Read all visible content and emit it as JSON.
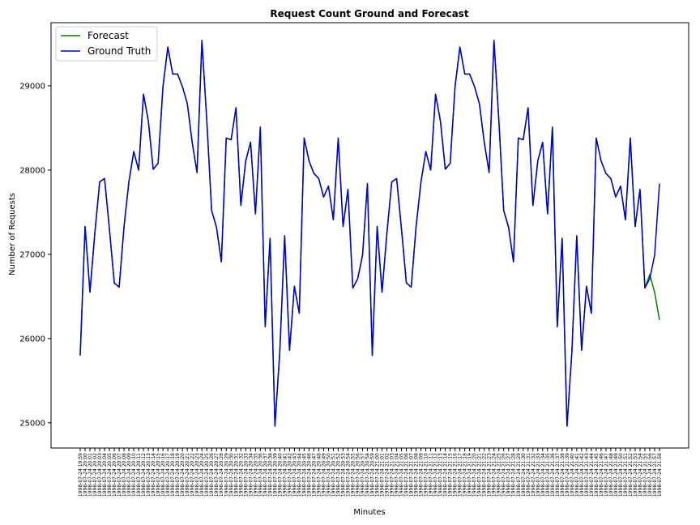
{
  "chart_data": {
    "type": "line",
    "title": "Request Count Ground and Forecast",
    "xlabel": "Minutes",
    "ylabel": "Number of Requests",
    "ylim": [
      24700,
      29750
    ],
    "yticks": [
      25000,
      26000,
      27000,
      28000,
      29000
    ],
    "x": [
      "1998-07-24 19:59",
      "1998-07-24 20:00",
      "1998-07-24 20:01",
      "1998-07-24 20:02",
      "1998-07-24 20:03",
      "1998-07-24 20:04",
      "1998-07-24 20:05",
      "1998-07-24 20:06",
      "1998-07-24 20:07",
      "1998-07-24 20:08",
      "1998-07-24 20:09",
      "1998-07-24 20:10",
      "1998-07-24 20:11",
      "1998-07-24 20:12",
      "1998-07-24 20:13",
      "1998-07-24 20:14",
      "1998-07-24 20:15",
      "1998-07-24 20:16",
      "1998-07-24 20:17",
      "1998-07-24 20:18",
      "1998-07-24 20:19",
      "1998-07-24 20:20",
      "1998-07-24 20:21",
      "1998-07-24 20:22",
      "1998-07-24 20:23",
      "1998-07-24 20:24",
      "1998-07-24 20:25",
      "1998-07-24 20:26",
      "1998-07-24 20:27",
      "1998-07-24 20:28",
      "1998-07-24 20:29",
      "1998-07-24 20:30",
      "1998-07-24 20:31",
      "1998-07-24 20:32",
      "1998-07-24 20:33",
      "1998-07-24 20:34",
      "1998-07-24 20:35",
      "1998-07-24 20:36",
      "1998-07-24 20:37",
      "1998-07-24 20:38",
      "1998-07-24 20:39",
      "1998-07-24 20:40",
      "1998-07-24 20:41",
      "1998-07-24 20:42",
      "1998-07-24 20:43",
      "1998-07-24 20:44",
      "1998-07-24 20:45",
      "1998-07-24 20:46",
      "1998-07-24 20:47",
      "1998-07-24 20:48",
      "1998-07-24 20:49",
      "1998-07-24 20:50",
      "1998-07-24 20:51",
      "1998-07-24 20:52",
      "1998-07-24 20:53",
      "1998-07-24 20:54",
      "1998-07-24 20:55",
      "1998-07-24 20:56",
      "1998-07-24 20:57",
      "1998-07-24 20:58",
      "1998-07-24 20:59",
      "1998-07-24 21:00",
      "1998-07-24 21:01",
      "1998-07-24 21:02",
      "1998-07-24 21:03",
      "1998-07-24 21:04",
      "1998-07-24 21:05",
      "1998-07-24 21:06",
      "1998-07-24 21:07",
      "1998-07-24 21:08",
      "1998-07-24 21:09",
      "1998-07-24 21:10",
      "1998-07-24 21:11",
      "1998-07-24 21:12",
      "1998-07-24 21:13",
      "1998-07-24 21:14",
      "1998-07-24 21:15",
      "1998-07-24 21:16",
      "1998-07-24 21:17",
      "1998-07-24 21:18",
      "1998-07-24 21:19",
      "1998-07-24 21:20",
      "1998-07-24 21:21",
      "1998-07-24 21:22",
      "1998-07-24 21:23",
      "1998-07-24 21:24",
      "1998-07-24 21:25",
      "1998-07-24 21:26",
      "1998-07-24 21:27",
      "1998-07-24 21:28",
      "1998-07-24 21:29",
      "1998-07-24 21:30",
      "1998-07-24 21:31",
      "1998-07-24 21:32",
      "1998-07-24 21:33",
      "1998-07-24 21:34",
      "1998-07-24 21:35",
      "1998-07-24 21:36",
      "1998-07-24 21:37",
      "1998-07-24 21:38",
      "1998-07-24 21:39",
      "1998-07-24 21:40",
      "1998-07-24 21:41",
      "1998-07-24 21:42",
      "1998-07-24 21:43",
      "1998-07-24 21:44",
      "1998-07-24 21:45",
      "1998-07-24 21:46",
      "1998-07-24 21:47",
      "1998-07-24 21:48",
      "1998-07-24 21:49",
      "1998-07-24 21:50",
      "1998-07-24 21:51",
      "1998-07-24 21:52",
      "1998-07-24 21:53",
      "1998-07-24 21:54",
      "1998-07-24 21:55",
      "1998-07-24 21:56",
      "1998-07-24 21:57",
      "1998-07-24 21:58"
    ],
    "series": [
      {
        "name": "Forecast",
        "color": "#008000",
        "values": [
          25800,
          27330,
          26550,
          27250,
          27860,
          27900,
          27300,
          26660,
          26610,
          27330,
          27860,
          28220,
          28000,
          28900,
          28580,
          28010,
          28080,
          28990,
          29460,
          29140,
          29140,
          28990,
          28790,
          28330,
          27970,
          29540,
          28590,
          27520,
          27320,
          26910,
          28380,
          28360,
          28740,
          27580,
          28110,
          28330,
          27480,
          28510,
          26140,
          27190,
          24960,
          25840,
          27220,
          25860,
          26620,
          26300,
          28380,
          28110,
          27960,
          27900,
          27680,
          27810,
          27410,
          28380,
          27330,
          27770,
          26600,
          26710,
          26990,
          27840,
          25800,
          27330,
          26550,
          27250,
          27860,
          27900,
          27300,
          26660,
          26610,
          27330,
          27860,
          28220,
          28000,
          28900,
          28580,
          28010,
          28080,
          28990,
          29460,
          29140,
          29140,
          28990,
          28790,
          28330,
          27970,
          29540,
          28590,
          27520,
          27320,
          26910,
          28380,
          28360,
          28740,
          27580,
          28110,
          28330,
          27480,
          28510,
          26140,
          27190,
          24960,
          25840,
          27220,
          25860,
          26620,
          26300,
          28380,
          28110,
          27960,
          27900,
          27680,
          27810,
          27410,
          28380,
          27330,
          27770,
          26600,
          26760,
          26550,
          26220
        ]
      },
      {
        "name": "Ground Truth",
        "color": "#0000cc",
        "values": [
          25800,
          27330,
          26550,
          27250,
          27860,
          27900,
          27300,
          26660,
          26610,
          27330,
          27860,
          28220,
          28000,
          28900,
          28580,
          28010,
          28080,
          28990,
          29460,
          29140,
          29140,
          28990,
          28790,
          28330,
          27970,
          29540,
          28590,
          27520,
          27320,
          26910,
          28380,
          28360,
          28740,
          27580,
          28110,
          28330,
          27480,
          28510,
          26140,
          27190,
          24960,
          25840,
          27220,
          25860,
          26620,
          26300,
          28380,
          28110,
          27960,
          27900,
          27680,
          27810,
          27410,
          28380,
          27330,
          27770,
          26600,
          26710,
          26990,
          27840,
          25800,
          27330,
          26550,
          27250,
          27860,
          27900,
          27300,
          26660,
          26610,
          27330,
          27860,
          28220,
          28000,
          28900,
          28580,
          28010,
          28080,
          28990,
          29460,
          29140,
          29140,
          28990,
          28790,
          28330,
          27970,
          29540,
          28590,
          27520,
          27320,
          26910,
          28380,
          28360,
          28740,
          27580,
          28110,
          28330,
          27480,
          28510,
          26140,
          27190,
          24960,
          25840,
          27220,
          25860,
          26620,
          26300,
          28380,
          28110,
          27960,
          27900,
          27680,
          27810,
          27410,
          28380,
          27330,
          27770,
          26600,
          26710,
          26990,
          27840
        ]
      }
    ],
    "legend": "top-left",
    "grid": false
  }
}
